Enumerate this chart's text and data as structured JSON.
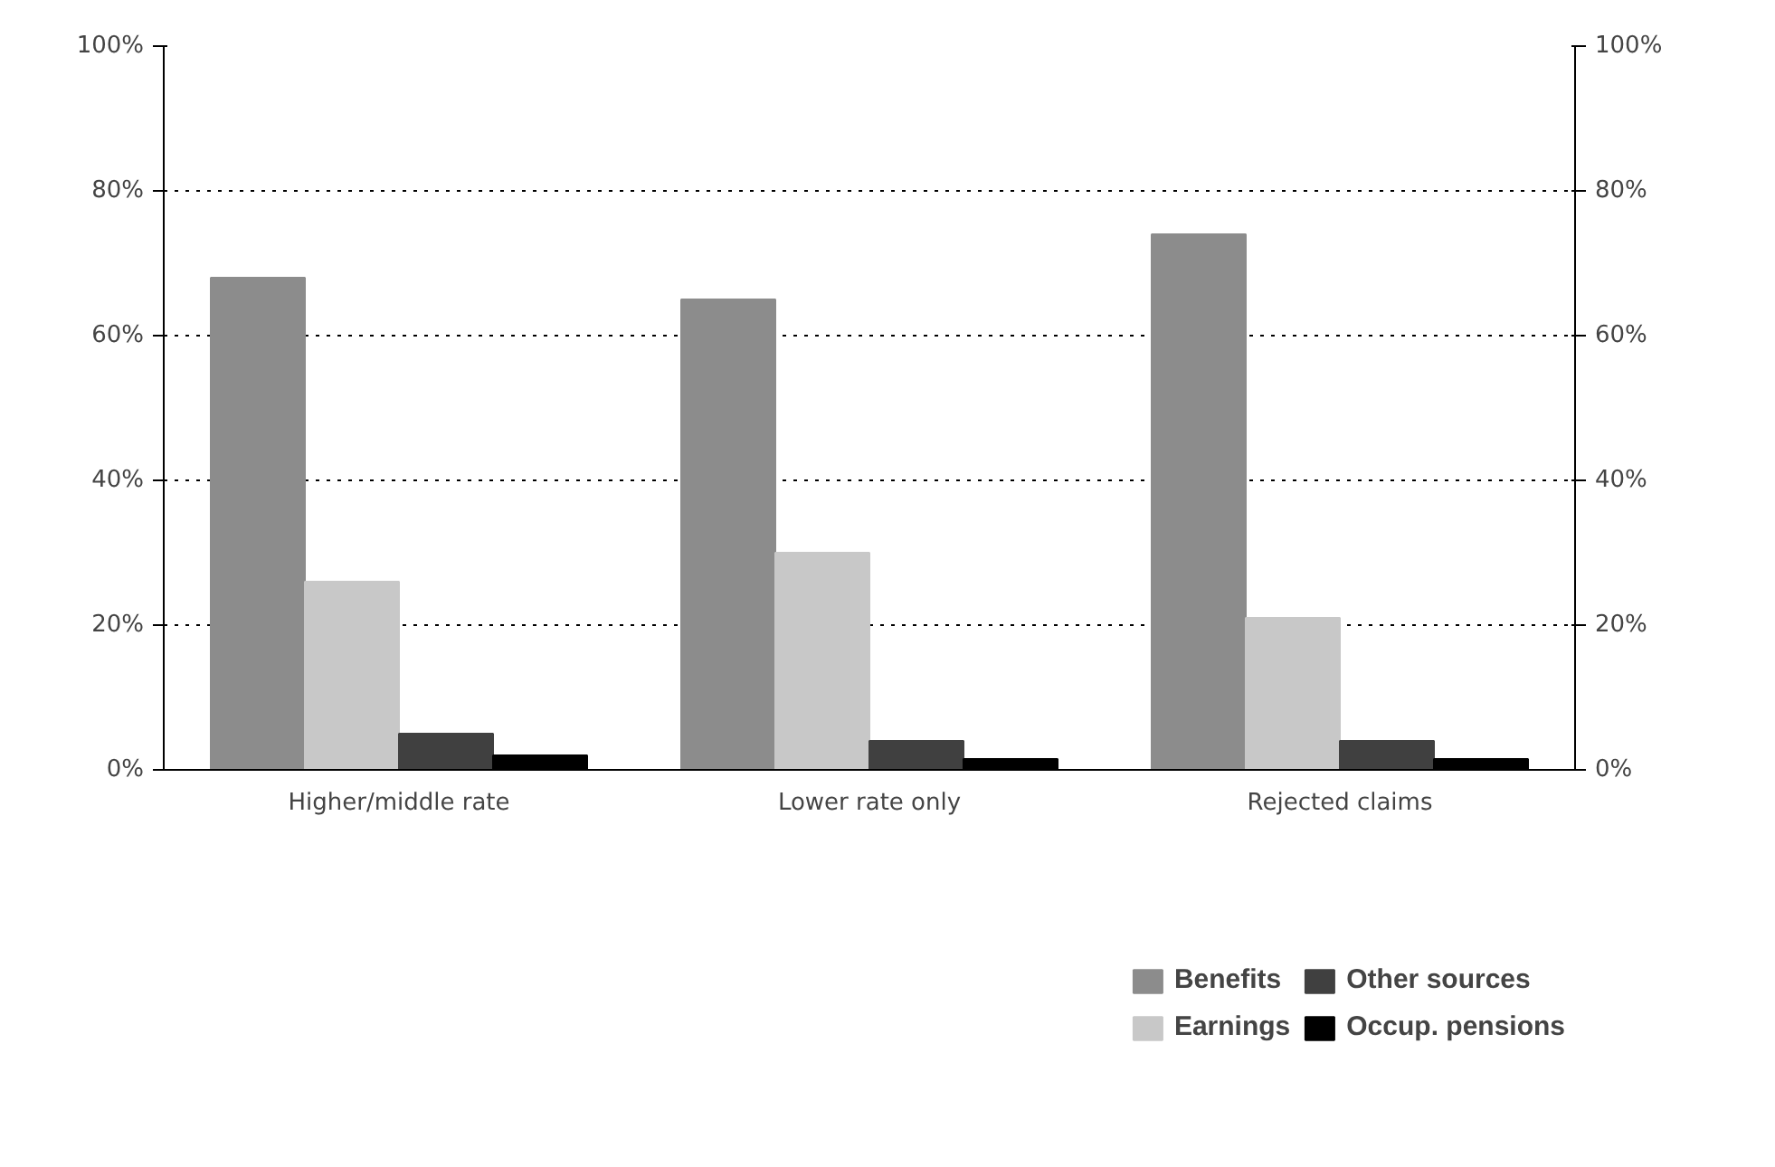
{
  "chart_data": {
    "type": "bar",
    "categories": [
      "Higher/middle rate",
      "Lower rate only",
      "Rejected claims"
    ],
    "series": [
      {
        "name": "Benefits",
        "color": "#8c8c8c",
        "values": [
          68,
          65,
          74
        ]
      },
      {
        "name": "Earnings",
        "color": "#c8c8c8",
        "values": [
          26,
          30,
          21
        ]
      },
      {
        "name": "Other sources",
        "color": "#404040",
        "values": [
          5,
          4,
          4
        ]
      },
      {
        "name": "Occup. pensions",
        "color": "#000000",
        "values": [
          2,
          1.5,
          1.5
        ]
      }
    ],
    "ylim": [
      0,
      100
    ],
    "yticks": [
      {
        "value": 0,
        "label": "0%"
      },
      {
        "value": 20,
        "label": "20%"
      },
      {
        "value": 40,
        "label": "40%"
      },
      {
        "value": 60,
        "label": "60%"
      },
      {
        "value": 80,
        "label": "80%"
      },
      {
        "value": 100,
        "label": "100%"
      }
    ],
    "y2lim": [
      0,
      100
    ],
    "y2ticks": [
      {
        "value": 0,
        "label": "0%"
      },
      {
        "value": 20,
        "label": "20%"
      },
      {
        "value": 40,
        "label": "40%"
      },
      {
        "value": 60,
        "label": "60%"
      },
      {
        "value": 80,
        "label": "80%"
      },
      {
        "value": 100,
        "label": "100%"
      }
    ],
    "grid": "y",
    "legend": "bottom"
  }
}
